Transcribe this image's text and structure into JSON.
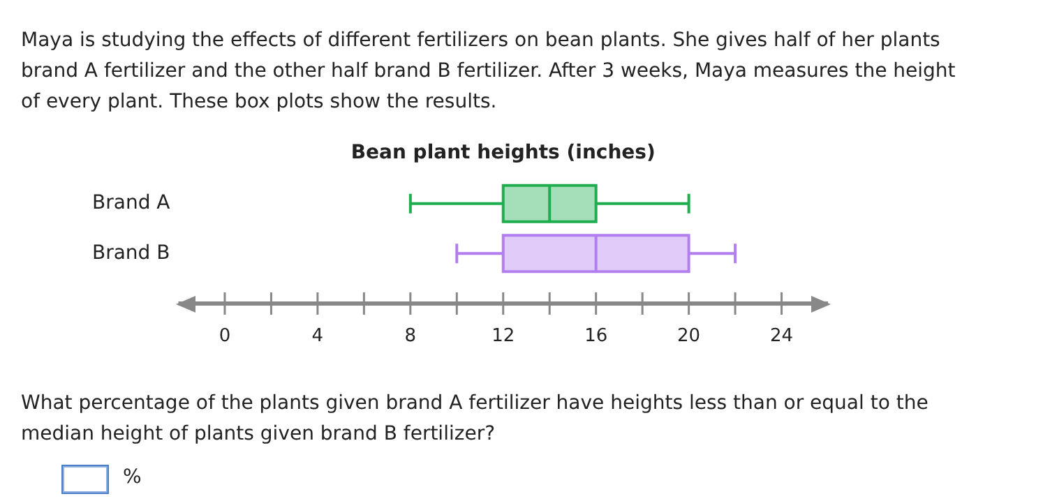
{
  "chart_data": {
    "type": "box",
    "title": "Bean plant heights (inches)",
    "categories": [
      "Brand A",
      "Brand B"
    ],
    "boxes": [
      {
        "low": 8,
        "q1": 12,
        "median": 14,
        "q3": 16,
        "high": 20
      },
      {
        "low": 10,
        "q1": 12,
        "median": 16,
        "q3": 20,
        "high": 22
      }
    ],
    "colors": [
      "#1fae4f",
      "#b27ef0"
    ],
    "orientation": "horizontal",
    "xlim": [
      -2,
      26
    ],
    "xticks": [
      0,
      {
        "value": 2,
        "label": null
      },
      4,
      {
        "value": 6,
        "label": null
      },
      8,
      {
        "value": 10,
        "label": null
      },
      12,
      {
        "value": 14,
        "label": null
      },
      16,
      {
        "value": 18,
        "label": null
      },
      20,
      {
        "value": 22,
        "label": null
      },
      24
    ],
    "grid": false,
    "legend": false,
    "annotations": [
      "Maya is studying the effects of different fertilizers on bean plants. She gives half of her plants brand A fertilizer and the other half brand B fertilizer. After 3 weeks, Maya measures the height of every plant. These box plots show the results.",
      "What percentage of the plants given brand A fertilizer have heights less than or equal to the median height of plants given brand B fertilizer?",
      "%"
    ]
  }
}
